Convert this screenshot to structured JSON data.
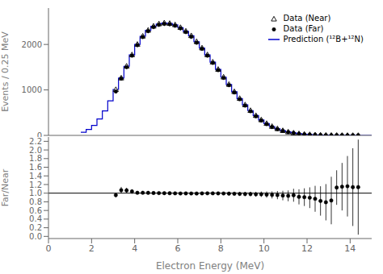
{
  "chart_data": [
    {
      "type": "histogram",
      "ylabel": "Events / 0.25 MeV",
      "xlim": [
        0,
        15
      ],
      "xticks": [
        0,
        2,
        4,
        6,
        8,
        10,
        12,
        14
      ],
      "ylim": [
        0,
        2800
      ],
      "yticks": [
        0,
        1000,
        2000
      ],
      "tick_labels": "y",
      "legend": "upper right",
      "series": [
        {
          "name": "Data (Near)",
          "type": "scatter",
          "marker": "triangle",
          "color": "#000000",
          "x": [
            3.125,
            3.375,
            3.625,
            3.875,
            4.125,
            4.375,
            4.625,
            4.875,
            5.125,
            5.375,
            5.625,
            5.875,
            6.125,
            6.375,
            6.625,
            6.875,
            7.125,
            7.375,
            7.625,
            7.875,
            8.125,
            8.375,
            8.625,
            8.875,
            9.125,
            9.375,
            9.625,
            9.875,
            10.125,
            10.375,
            10.625,
            10.875,
            11.125,
            11.375,
            11.625,
            11.875,
            12.125,
            12.375,
            12.625,
            12.875,
            13.125,
            13.375,
            13.625,
            13.875,
            14.125,
            14.375
          ],
          "values": [
            1010,
            1265,
            1525,
            1775,
            2005,
            2185,
            2315,
            2405,
            2455,
            2475,
            2465,
            2435,
            2375,
            2295,
            2195,
            2065,
            1925,
            1775,
            1615,
            1455,
            1285,
            1125,
            965,
            815,
            675,
            550,
            440,
            345,
            265,
            200,
            150,
            108,
            78,
            56,
            40,
            28,
            20,
            14,
            10,
            7,
            5,
            4,
            3,
            2,
            1.5,
            1
          ],
          "error": [
            32,
            36,
            39,
            42,
            45,
            47,
            48,
            49,
            50,
            50,
            50,
            49,
            49,
            48,
            47,
            46,
            44,
            42,
            40,
            38,
            36,
            34,
            31,
            29,
            26,
            24,
            21,
            19,
            16,
            14,
            12,
            10,
            9,
            8,
            6,
            5,
            5,
            4,
            3,
            3,
            2,
            2,
            2,
            2,
            1.5,
            1
          ]
        },
        {
          "name": "Data (Far)",
          "type": "scatter",
          "marker": "circle",
          "color": "#000000",
          "x": [
            3.125,
            3.375,
            3.625,
            3.875,
            4.125,
            4.375,
            4.625,
            4.875,
            5.125,
            5.375,
            5.625,
            5.875,
            6.125,
            6.375,
            6.625,
            6.875,
            7.125,
            7.375,
            7.625,
            7.875,
            8.125,
            8.375,
            8.625,
            8.875,
            9.125,
            9.375,
            9.625,
            9.875,
            10.125,
            10.375,
            10.625,
            10.875,
            11.125,
            11.375,
            11.625,
            11.875,
            12.125,
            12.375,
            12.625,
            12.875,
            13.125,
            13.375,
            13.625,
            13.875,
            14.125,
            14.375
          ],
          "values": [
            965,
            1250,
            1500,
            1755,
            1985,
            2165,
            2295,
            2385,
            2435,
            2455,
            2445,
            2415,
            2355,
            2275,
            2170,
            2040,
            1905,
            1755,
            1595,
            1435,
            1265,
            1105,
            945,
            795,
            655,
            530,
            420,
            328,
            248,
            185,
            138,
            99,
            72,
            52,
            36,
            25,
            17,
            12,
            8,
            5,
            4,
            4,
            4,
            3,
            2,
            2
          ],
          "error": [
            31,
            35,
            39,
            42,
            45,
            46,
            48,
            49,
            49,
            50,
            49,
            49,
            49,
            48,
            47,
            45,
            44,
            42,
            40,
            38,
            36,
            33,
            31,
            28,
            26,
            23,
            20,
            18,
            16,
            14,
            12,
            10,
            8,
            7,
            6,
            5,
            4,
            4,
            3,
            3,
            2,
            2,
            2,
            2,
            1.5,
            1.5
          ]
        },
        {
          "name": "Prediction (¹²B+¹²N)",
          "type": "step",
          "color": "#0000cc",
          "bins": [
            1.5,
            1.75,
            2.0,
            2.25,
            2.5,
            2.75,
            3.0,
            3.25,
            3.5,
            3.75,
            4.0,
            4.25,
            4.5,
            4.75,
            5.0,
            5.25,
            5.5,
            5.75,
            6.0,
            6.25,
            6.5,
            6.75,
            7.0,
            7.25,
            7.5,
            7.75,
            8.0,
            8.25,
            8.5,
            8.75,
            9.0,
            9.25,
            9.5,
            9.75,
            10.0,
            10.25,
            10.5,
            10.75,
            11.0,
            11.25,
            11.5,
            11.75,
            12.0,
            12.25,
            12.5,
            12.75,
            13.0,
            13.25,
            13.5,
            13.75,
            14.0,
            14.25,
            14.5,
            14.75,
            15.0
          ],
          "values": [
            70,
            130,
            220,
            360,
            540,
            760,
            1010,
            1260,
            1520,
            1770,
            2000,
            2180,
            2310,
            2400,
            2450,
            2470,
            2460,
            2430,
            2370,
            2290,
            2190,
            2060,
            1920,
            1770,
            1610,
            1450,
            1280,
            1120,
            960,
            810,
            670,
            545,
            435,
            340,
            260,
            195,
            145,
            105,
            76,
            54,
            38,
            27,
            19,
            13,
            9,
            6,
            4,
            3,
            2,
            1,
            0.7,
            0.4,
            0.2,
            0.1
          ]
        }
      ]
    },
    {
      "type": "scatter",
      "xlabel": "Electron Energy (MeV)",
      "ylabel": "Far/Near",
      "xlim": [
        0,
        15
      ],
      "xticks": [
        0,
        2,
        4,
        6,
        8,
        10,
        12,
        14
      ],
      "ylim": [
        -0.05,
        2.3
      ],
      "yticks": [
        {
          "value": 0.0,
          "label": "0.0"
        },
        0.2,
        0.4,
        0.6,
        0.8,
        {
          "value": 1.0,
          "label": "1.0"
        },
        1.2,
        1.4,
        1.6,
        1.8,
        {
          "value": 2.0,
          "label": "2.0"
        },
        2.2
      ],
      "reference_line": 1.0,
      "series": [
        {
          "type": "scatter",
          "marker": "circle",
          "color": "#000000",
          "x": [
            3.125,
            3.375,
            3.625,
            3.875,
            4.125,
            4.375,
            4.625,
            4.875,
            5.125,
            5.375,
            5.625,
            5.875,
            6.125,
            6.375,
            6.625,
            6.875,
            7.125,
            7.375,
            7.625,
            7.875,
            8.125,
            8.375,
            8.625,
            8.875,
            9.125,
            9.375,
            9.625,
            9.875,
            10.125,
            10.375,
            10.625,
            10.875,
            11.125,
            11.375,
            11.625,
            11.875,
            12.125,
            12.375,
            12.625,
            12.875,
            13.125,
            13.375,
            13.625,
            13.875,
            14.125,
            14.375
          ],
          "values": [
            0.955,
            1.07,
            1.065,
            1.04,
            1.01,
            1.01,
            1.008,
            1.004,
            1.002,
            1.0,
            0.998,
            0.996,
            0.993,
            0.994,
            0.993,
            0.992,
            0.995,
            0.997,
            0.996,
            0.995,
            0.993,
            0.989,
            0.987,
            0.983,
            0.98,
            0.98,
            0.974,
            0.975,
            0.967,
            0.96,
            0.955,
            0.945,
            0.938,
            0.952,
            0.915,
            0.908,
            0.895,
            0.87,
            0.82,
            0.79,
            0.83,
            1.13,
            1.15,
            1.16,
            1.14,
            1.14
          ],
          "error": [
            0.055,
            0.075,
            0.06,
            0.05,
            0.04,
            0.038,
            0.035,
            0.033,
            0.03,
            0.03,
            0.029,
            0.029,
            0.028,
            0.028,
            0.028,
            0.029,
            0.03,
            0.031,
            0.033,
            0.034,
            0.036,
            0.038,
            0.041,
            0.045,
            0.048,
            0.052,
            0.057,
            0.063,
            0.072,
            0.082,
            0.095,
            0.11,
            0.125,
            0.15,
            0.175,
            0.205,
            0.24,
            0.3,
            0.34,
            0.42,
            0.55,
            0.4,
            0.55,
            0.7,
            0.9,
            1.1
          ]
        }
      ]
    }
  ]
}
